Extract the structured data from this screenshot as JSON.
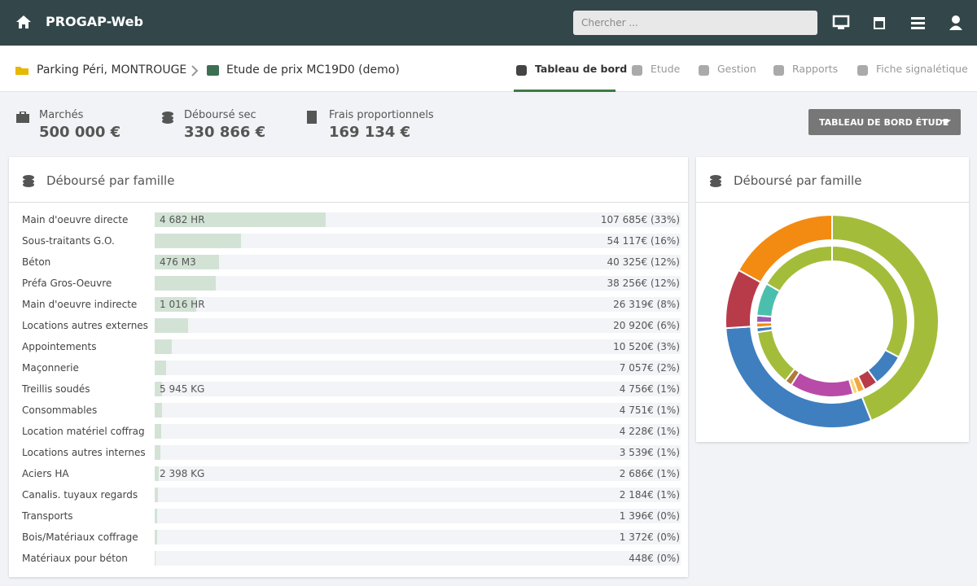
{
  "header": {
    "app_name": "PROGAP-Web",
    "search_placeholder": "Chercher ..."
  },
  "breadcrumb": {
    "project": "Parking Péri, MONTROUGE",
    "study": "Etude de prix MC19D0 (demo)"
  },
  "tabs": [
    "Tableau de bord",
    "Etude",
    "Gestion",
    "Rapports",
    "Fiche signalétique"
  ],
  "active_tab": 0,
  "summary": [
    {
      "label": "Marchés",
      "value": "500 000 €"
    },
    {
      "label": "Déboursé sec",
      "value": "330 866 €"
    },
    {
      "label": "Frais proportionnels",
      "value": "169 134 €"
    }
  ],
  "dashboard_button": "TABLEAU DE BORD ÉTUDE",
  "bar_panel": {
    "title": "Déboursé par famille",
    "color": "#d2e3d5",
    "names": [
      "Main d'oeuvre directe",
      "Sous-traitants G.O.",
      "Béton",
      "Préfa Gros-Oeuvre",
      "Main d'oeuvre indirecte",
      "Locations autres externes",
      "Appointements",
      "Maçonnerie",
      "Treillis soudés",
      "Consommables",
      "Location matériel coffrag",
      "Locations autres internes",
      "Aciers HA",
      "Canalis. tuyaux regards",
      "Transports",
      "Bois/Matériaux coffrage",
      "Matériaux pour béton"
    ],
    "quantities": [
      "4 682 HR",
      null,
      "476 M3",
      null,
      "1 016 HR",
      null,
      null,
      null,
      "5 945 KG",
      null,
      null,
      null,
      "2 398 KG",
      null,
      null,
      null,
      null
    ],
    "values": [
      107685,
      54117,
      40325,
      38256,
      26319,
      20920,
      10520,
      7057,
      4756,
      4751,
      4228,
      3539,
      2686,
      2184,
      1396,
      1372,
      448
    ],
    "value_labels": [
      "107 685€ (33%)",
      "54 117€ (16%)",
      "40 325€ (12%)",
      "38 256€ (12%)",
      "26 319€ (8%)",
      "20 920€ (6%)",
      "10 520€ (3%)",
      "7 057€ (2%)",
      "4 756€ (1%)",
      "4 751€ (1%)",
      "4 228€ (1%)",
      "3 539€ (1%)",
      "2 686€ (1%)",
      "2 184€ (1%)",
      "1 396€ (0%)",
      "1 372€ (0%)",
      "448€ (0%)"
    ]
  },
  "donut_panel": {
    "title": "Déboursé par famille",
    "outer": {
      "values": [
        44,
        30,
        9,
        17
      ],
      "colors": [
        "#a3bd3a",
        "#3f7fbf",
        "#b83b4a",
        "#f38a12"
      ]
    },
    "inner": {
      "values": [
        32.5,
        7,
        3,
        1.5,
        1,
        13.5,
        1.5,
        12,
        1,
        1,
        1.5,
        7,
        16.5
      ],
      "colors": [
        "#a3bd3a",
        "#3f7fbf",
        "#b83b4a",
        "#f3a640",
        "#f7d66b",
        "#b94ba8",
        "#b07a3c",
        "#a3bd3a",
        "#3f7fbf",
        "#f38a12",
        "#9b59b6",
        "#4bbfae",
        "#a3bd3a"
      ]
    }
  }
}
